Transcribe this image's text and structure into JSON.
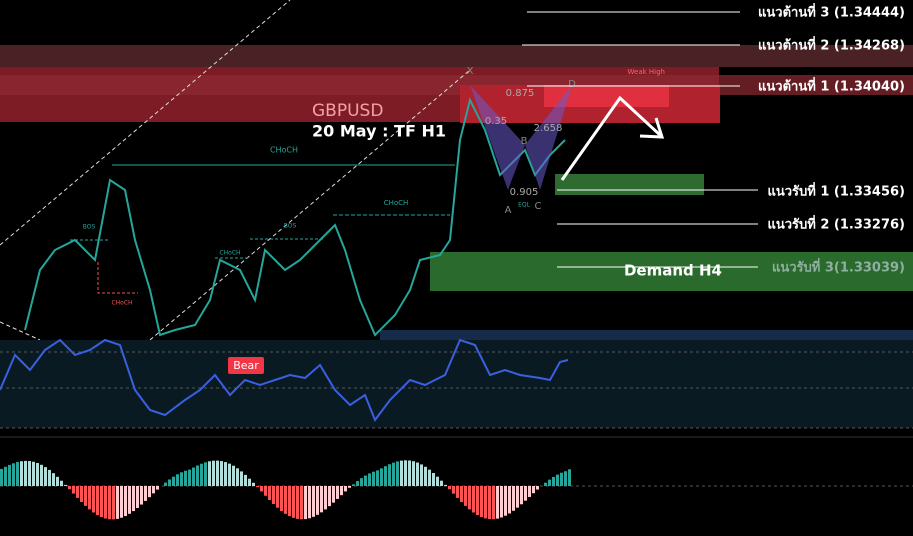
{
  "header": {
    "symbol": "GBPUSD",
    "subtitle": "20 May : TF H1"
  },
  "levels": {
    "resistance": [
      "แนวต้านที่ 3 (1.34444)",
      "แนวต้านที่ 2 (1.34268)",
      "แนวต้านที่ 1 (1.34040)"
    ],
    "support": [
      "แนวรับที่ 1 (1.33456)",
      "แนวรับที่ 2 (1.33276)",
      "แนวรับที่ 3(1.33039)"
    ]
  },
  "zones": {
    "demand": "Demand H4",
    "weak_high": "Weak High"
  },
  "structure": {
    "choch_1": "CHoCH",
    "choch_2": "CHoCH",
    "choch_3": "CHoCH",
    "choch_red": "CHoCH",
    "bos_1": "BOS",
    "bos_2": "BOS",
    "eql": "EQL"
  },
  "pattern": {
    "points": [
      "X",
      "A",
      "B",
      "C",
      "D"
    ],
    "ratios": [
      "0.875",
      "0.35",
      "2.658",
      "0.905"
    ]
  },
  "rsi": {
    "signal": "Bear"
  }
}
